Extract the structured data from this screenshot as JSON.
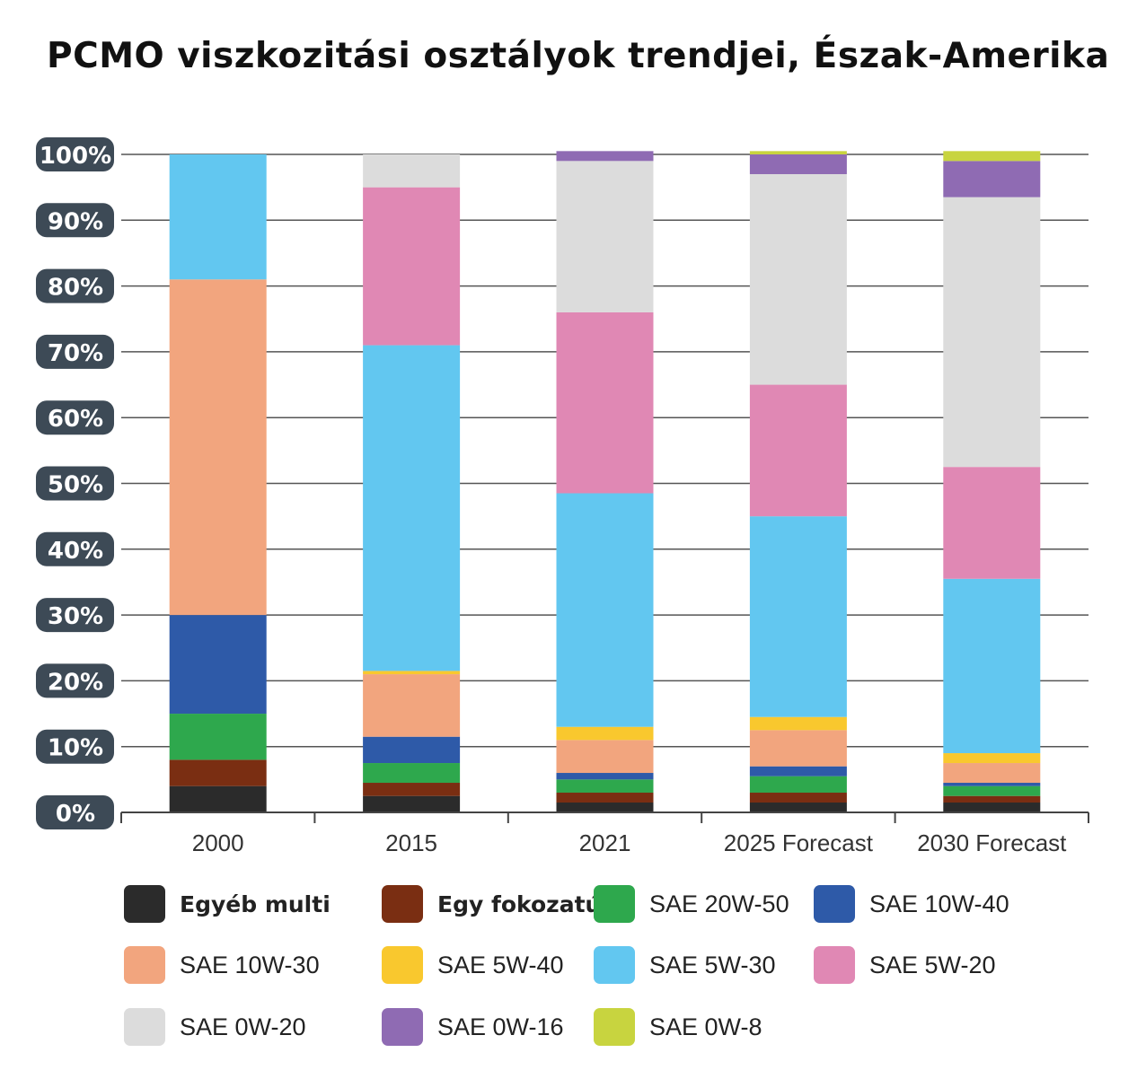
{
  "title": "PCMO viszkozitási osztályok trendjei, Észak-Amerika",
  "chart_data": {
    "type": "bar",
    "stacked": true,
    "categories": [
      "2000",
      "2015",
      "2021",
      "2025 Forecast",
      "2030 Forecast"
    ],
    "ylim": [
      0,
      100
    ],
    "yticks": [
      "0%",
      "10%",
      "20%",
      "30%",
      "40%",
      "50%",
      "60%",
      "70%",
      "80%",
      "90%",
      "100%"
    ],
    "grid": true,
    "legend_position": "bottom",
    "series": [
      {
        "name": "Egyéb multi",
        "color": "#2b2b2b",
        "bold": true,
        "values": [
          4,
          2.5,
          1.5,
          1.5,
          1.5
        ]
      },
      {
        "name": "Egy fokozatú",
        "color": "#7a2e12",
        "bold": true,
        "values": [
          4,
          2,
          1.5,
          1.5,
          1
        ]
      },
      {
        "name": "SAE 20W-50",
        "color": "#2ea84d",
        "values": [
          7,
          3,
          2,
          2.5,
          1.5
        ]
      },
      {
        "name": "SAE 10W-40",
        "color": "#2e5aa8",
        "values": [
          15,
          4,
          1,
          1.5,
          0.5
        ]
      },
      {
        "name": "SAE 10W-30",
        "color": "#f2a57e",
        "values": [
          51,
          9.5,
          5,
          5.5,
          3
        ]
      },
      {
        "name": "SAE 5W-40",
        "color": "#f9c82e",
        "values": [
          0,
          0.5,
          2,
          2,
          1.5
        ]
      },
      {
        "name": "SAE 5W-30",
        "color": "#62c7f0",
        "values": [
          19,
          49.5,
          35.5,
          30.5,
          26.5
        ]
      },
      {
        "name": "SAE 5W-20",
        "color": "#e088b4",
        "values": [
          0,
          24,
          27.5,
          20,
          17
        ]
      },
      {
        "name": "SAE 0W-20",
        "color": "#dcdcdc",
        "values": [
          0,
          5,
          23,
          32,
          41
        ]
      },
      {
        "name": "SAE 0W-16",
        "color": "#8f6bb3",
        "values": [
          0,
          0,
          1.5,
          3,
          5.5
        ]
      },
      {
        "name": "SAE 0W-8",
        "color": "#c8d43f",
        "values": [
          0,
          0,
          0,
          0.5,
          1.5
        ]
      }
    ]
  }
}
